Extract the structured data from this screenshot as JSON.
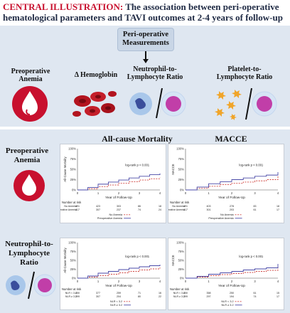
{
  "title": {
    "prefix": "CENTRAL ILLUSTRATION:",
    "main": "The association between peri-operative hematological parameters and TAVI outcomes at 2-4 years of follow-up"
  },
  "measurements": {
    "heading": "Peri-operative Measurements",
    "items": [
      {
        "label": "Preoperative Anemia"
      },
      {
        "label": "Δ Hemoglobin"
      },
      {
        "label": "Neutrophil-to-Lymphocyte Ratio"
      },
      {
        "label": "Platelet-to-Lymphocyte Ratio"
      }
    ]
  },
  "outcomes": {
    "col1": "All-cause Mortality",
    "col2": "MACCE"
  },
  "rows": [
    {
      "label": "Preoperative Anemia"
    },
    {
      "label": "Neutrophil-to-Lymphocyte Ratio"
    }
  ],
  "colors": {
    "red": "#c8102e",
    "navy": "#1f2a44",
    "panel": "#dfe7f1",
    "blue_line": "#4a4aa8",
    "red_line": "#d0433e"
  },
  "chart_data": [
    {
      "type": "line",
      "ylabel": "All-Cause Mortality",
      "xlabel": "Year of Follow-Up",
      "yticks": [
        "0%",
        "25%",
        "50%",
        "75%",
        "100%"
      ],
      "xticks": [
        "0",
        "1",
        "2",
        "3",
        "4"
      ],
      "pvalue": "log-rank p < 0.001",
      "ylim": [
        0,
        100
      ],
      "xlim": [
        0,
        4
      ],
      "x": [
        0,
        0.5,
        1,
        1.5,
        2,
        2.5,
        3,
        3.5,
        4
      ],
      "series": [
        {
          "name": "No Anemia",
          "color": "#d0433e",
          "dashed": true,
          "values": [
            0,
            3,
            8,
            12,
            16,
            20,
            24,
            27,
            30
          ]
        },
        {
          "name": "Preoperative Anemia",
          "color": "#4a4aa8",
          "dashed": false,
          "values": [
            0,
            6,
            14,
            19,
            24,
            29,
            33,
            37,
            40
          ]
        }
      ],
      "risk": {
        "title": "Number at risk",
        "rows": [
          {
            "name": "No Anemia",
            "values": [
              "491",
              "423",
              "303",
              "86",
              "18"
            ]
          },
          {
            "name": "Preoperative Anemia",
            "values": [
              "417",
              "307",
              "237",
              "74",
              "24"
            ]
          }
        ]
      }
    },
    {
      "type": "line",
      "ylabel": "MACCE",
      "xlabel": "Year of Follow-Up",
      "yticks": [
        "0%",
        "25%",
        "50%",
        "75%",
        "100%"
      ],
      "xticks": [
        "0",
        "1",
        "2",
        "3",
        "4"
      ],
      "pvalue": "log-rank p < 0.001",
      "ylim": [
        0,
        100
      ],
      "xlim": [
        0,
        4
      ],
      "x": [
        0,
        0.5,
        1,
        1.5,
        2,
        2.5,
        3,
        3.5,
        4
      ],
      "series": [
        {
          "name": "No Anemia",
          "color": "#d0433e",
          "dashed": true,
          "values": [
            0,
            4,
            9,
            13,
            16,
            19,
            22,
            25,
            33
          ]
        },
        {
          "name": "Preoperative Anemia",
          "color": "#4a4aa8",
          "dashed": false,
          "values": [
            0,
            7,
            15,
            20,
            25,
            29,
            33,
            36,
            43
          ]
        }
      ],
      "risk": {
        "title": "Number at risk",
        "rows": [
          {
            "name": "No Anemia",
            "values": [
              "491",
              "403",
              "278",
              "83",
              "18"
            ]
          },
          {
            "name": "Preoperative Anemia",
            "values": [
              "417",
              "301",
              "203",
              "61",
              "17"
            ]
          }
        ]
      }
    },
    {
      "type": "line",
      "ylabel": "All-Cause Mortality",
      "xlabel": "Year of Follow-Up",
      "yticks": [
        "0%",
        "25%",
        "50%",
        "75%",
        "100%"
      ],
      "xticks": [
        "0",
        "1",
        "2",
        "3",
        "4"
      ],
      "pvalue": "log-rank p < 0.001",
      "ylim": [
        0,
        100
      ],
      "xlim": [
        0,
        4
      ],
      "x": [
        0,
        0.5,
        1,
        1.5,
        2,
        2.5,
        3,
        3.5,
        4
      ],
      "series": [
        {
          "name": "NLR < 3.2",
          "color": "#d0433e",
          "dashed": true,
          "values": [
            0,
            3,
            7,
            11,
            15,
            19,
            23,
            26,
            30
          ]
        },
        {
          "name": "NLR ≥ 3.2",
          "color": "#4a4aa8",
          "dashed": false,
          "values": [
            0,
            6,
            14,
            19,
            24,
            28,
            32,
            35,
            38
          ]
        }
      ],
      "risk": {
        "title": "Number at risk",
        "rows": [
          {
            "name": "NLR < 3.2",
            "values": [
              "450",
              "377",
              "259",
              "71",
              "16"
            ]
          },
          {
            "name": "NLR ≥ 3.2",
            "values": [
              "399",
              "307",
              "204",
              "80",
              "22"
            ]
          }
        ]
      }
    },
    {
      "type": "line",
      "ylabel": "MACCE",
      "xlabel": "Year of Follow-Up",
      "yticks": [
        "0%",
        "25%",
        "50%",
        "75%",
        "100%"
      ],
      "xticks": [
        "0",
        "1",
        "2",
        "3",
        "4"
      ],
      "pvalue": "log-rank p < 0.001",
      "ylim": [
        0,
        100
      ],
      "xlim": [
        0,
        4
      ],
      "x": [
        0,
        0.5,
        1,
        1.5,
        2,
        2.5,
        3,
        3.5,
        4
      ],
      "series": [
        {
          "name": "NLR < 3.2",
          "color": "#d0433e",
          "dashed": true,
          "values": [
            0,
            3,
            7,
            10,
            13,
            16,
            19,
            22,
            32
          ]
        },
        {
          "name": "NLR ≥ 3.2",
          "color": "#4a4aa8",
          "dashed": false,
          "values": [
            0,
            5,
            11,
            15,
            19,
            23,
            26,
            29,
            40
          ]
        }
      ],
      "risk": {
        "title": "Number at risk",
        "rows": [
          {
            "name": "NLR < 3.2",
            "values": [
              "450",
              "358",
              "250",
              "61",
              "15"
            ]
          },
          {
            "name": "NLR ≥ 3.2",
            "values": [
              "399",
              "297",
              "194",
              "74",
              "17"
            ]
          }
        ]
      }
    }
  ]
}
